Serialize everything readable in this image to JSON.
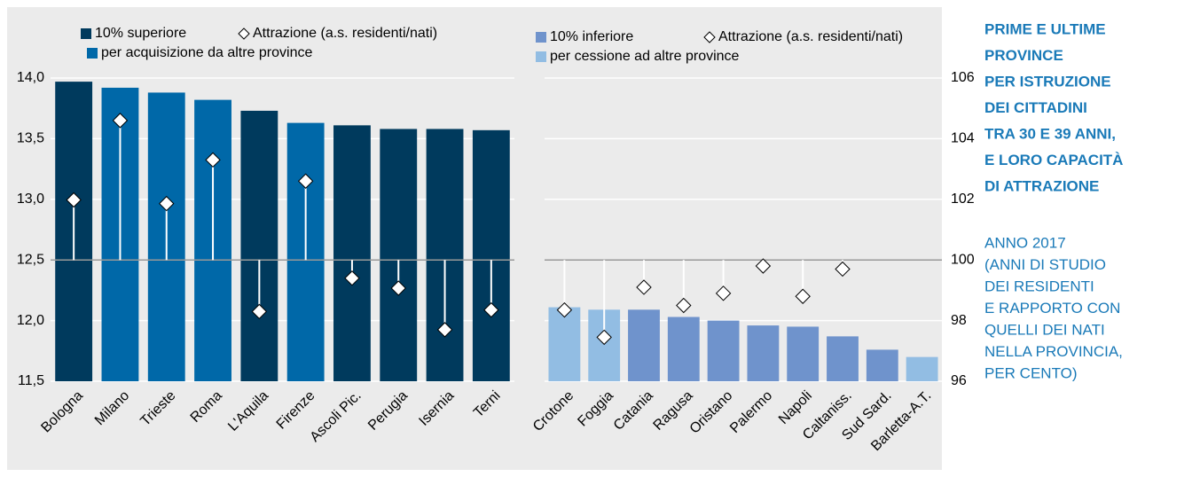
{
  "chart_data": [
    {
      "type": "bar",
      "categories": [
        "Bologna",
        "Milano",
        "Trieste",
        "Roma",
        "L'Aquila",
        "Firenze",
        "Ascoli Pic.",
        "Perugia",
        "Isernia",
        "Terni"
      ],
      "series": [
        {
          "name": "10% superiore",
          "color": "#003a5d",
          "values": [
            13.97,
            null,
            null,
            null,
            13.73,
            null,
            13.61,
            13.58,
            13.58,
            13.57
          ]
        },
        {
          "name": "per acquisizione da altre province",
          "color": "#0068a8",
          "values": [
            null,
            13.92,
            13.88,
            13.82,
            null,
            13.63,
            null,
            null,
            null,
            null
          ]
        },
        {
          "name": "Attrazione (a.s. residenti/nati)",
          "marker": "diamond",
          "axis": "y2",
          "values": [
            101.98,
            104.6,
            101.86,
            103.3,
            98.3,
            102.6,
            99.4,
            99.07,
            97.7,
            98.35
          ]
        }
      ],
      "ylim": [
        11.5,
        14.0
      ],
      "yticks": [
        {
          "value": 11.5,
          "label": "11,5"
        },
        {
          "value": 12.0,
          "label": "12,0"
        },
        {
          "value": 12.5,
          "label": "12,5"
        },
        {
          "value": 13.0,
          "label": "13,0"
        },
        {
          "value": 13.5,
          "label": "13,5"
        },
        {
          "value": 14.0,
          "label": "14,0"
        }
      ],
      "y2lim": [
        96,
        106
      ],
      "y2base": 100,
      "grid": true
    },
    {
      "type": "bar",
      "categories": [
        "Crotone",
        "Foggia",
        "Catania",
        "Ragusa",
        "Oristano",
        "Palermo",
        "Napoli",
        "Caltaniss.",
        "Sud Sard.",
        "Barletta-A.T."
      ],
      "series": [
        {
          "name": "10% inferiore",
          "color": "#6f93cc",
          "values": [
            null,
            null,
            12.09,
            12.03,
            12.0,
            11.96,
            11.95,
            11.87,
            11.76,
            null
          ]
        },
        {
          "name": "per cessione ad altre province",
          "color": "#92bde3",
          "values": [
            12.11,
            12.09,
            null,
            null,
            null,
            null,
            null,
            null,
            null,
            11.7
          ]
        },
        {
          "name": "Attrazione (a.s. residenti/nati)",
          "marker": "diamond",
          "axis": "y2",
          "values": [
            98.35,
            97.45,
            99.1,
            98.5,
            98.9,
            99.8,
            98.8,
            99.7,
            null,
            null
          ]
        }
      ],
      "ylim": [
        11.5,
        14.0
      ],
      "y2lim": [
        96,
        106
      ],
      "y2ticks": [
        96,
        98,
        100,
        102,
        104,
        106
      ],
      "y2base": 100,
      "grid": true
    }
  ],
  "side": {
    "title": [
      "PRIME E ULTIME",
      "PROVINCE",
      "PER ISTRUZIONE",
      "DEI CITTADINI",
      "TRA 30 E 39 ANNI,",
      "E LORO CAPACITÀ",
      "DI ATTRAZIONE"
    ],
    "subtitle": [
      "ANNO 2017",
      "(ANNI DI STUDIO",
      "DEI RESIDENTI",
      "E RAPPORTO CON",
      "QUELLI DEI NATI",
      "NELLA PROVINCIA,",
      "PER CENTO)"
    ]
  }
}
